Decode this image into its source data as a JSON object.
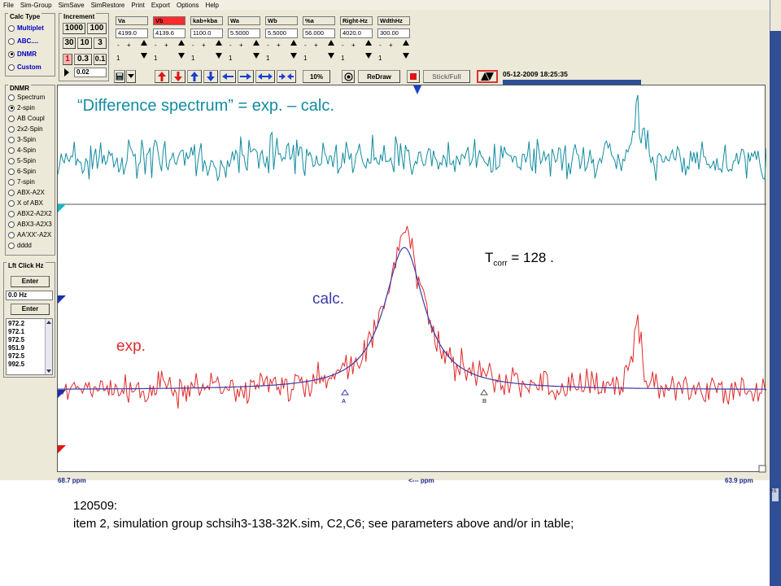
{
  "menu": [
    "File",
    "Sim-Group",
    "SimSave",
    "SimRestore",
    "Print",
    "Export",
    "Options",
    "Help"
  ],
  "calc_type": {
    "title": "Calc Type",
    "options": [
      {
        "label": "Multiplet",
        "checked": false
      },
      {
        "label": "ABC....",
        "checked": false
      },
      {
        "label": "DNMR",
        "checked": true
      },
      {
        "label": "Custom",
        "checked": false
      }
    ]
  },
  "increment": {
    "title": "Increment",
    "buttons": [
      "1000",
      "100",
      "30",
      "10",
      "3",
      "1",
      "0.3",
      "0.1"
    ],
    "value": "0.02"
  },
  "params": [
    {
      "label": "Va",
      "value": "4199.0",
      "highlight": false
    },
    {
      "label": "Vb",
      "value": "4139.6",
      "highlight": true
    },
    {
      "label": "kab+kba",
      "value": "1100.0",
      "highlight": false
    },
    {
      "label": "Wa",
      "value": "5.5000",
      "highlight": false
    },
    {
      "label": "Wb",
      "value": "5.5000",
      "highlight": false
    },
    {
      "label": "%a",
      "value": "56.000",
      "highlight": false
    },
    {
      "label": "Right-Hz",
      "value": "4020.0",
      "highlight": false
    },
    {
      "label": "WdthHz",
      "value": "300.00",
      "highlight": false
    }
  ],
  "param_step_symbol_minus": "-",
  "param_step_symbol_plus": "+",
  "param_step_one": "1",
  "dnmr": {
    "title": "DNMR",
    "options": [
      {
        "label": "Spectrum",
        "checked": false
      },
      {
        "label": "2-spin",
        "checked": true
      },
      {
        "label": "AB Coupl",
        "checked": false
      },
      {
        "label": "2x2-Spin",
        "checked": false
      },
      {
        "label": "3-Spin",
        "checked": false
      },
      {
        "label": "4-Spin",
        "checked": false
      },
      {
        "label": "5-Spin",
        "checked": false
      },
      {
        "label": "6-Spin",
        "checked": false
      },
      {
        "label": "7-spin",
        "checked": false
      },
      {
        "label": "ABX-A2X",
        "checked": false
      },
      {
        "label": "X of ABX",
        "checked": false
      },
      {
        "label": "ABX2-A2X2",
        "checked": false
      },
      {
        "label": "ABX3-A2X3",
        "checked": false
      },
      {
        "label": "AA'XX'-A2X",
        "checked": false
      },
      {
        "label": "dddd",
        "checked": false
      }
    ]
  },
  "left_click": {
    "title": "Lft Click Hz",
    "enter_label": "Enter",
    "value": "0.0 Hz",
    "list": [
      "972.2",
      "972.1",
      "972.5",
      "951.9",
      "972.5",
      "992.5"
    ]
  },
  "toolbar": {
    "zoom": "10%",
    "redraw": "ReDraw",
    "stick_full": "Stick/Full"
  },
  "datetime": "05-12-2009  18:25:35",
  "colors": {
    "difference": "#138ca0",
    "experimental": "#e02a2a",
    "calculated": "#3b3ba8"
  },
  "plot": {
    "annotation_difference": "“Difference spectrum” = exp. – calc.",
    "tcorr_main": "T",
    "tcorr_sub": "corr",
    "tcorr_value": " = 128  .",
    "label_calc": "calc.",
    "label_exp": "exp.",
    "marker_a": "A",
    "marker_b": "B"
  },
  "axis": {
    "left": "68.7 ppm",
    "middle": "<--- ppm",
    "right": "63.9 ppm"
  },
  "caption": {
    "line1": "120509:",
    "line2": "item 2, simulation group schsih3-138-32K.sim,  C2,C6; see parameters above and/or in table;"
  },
  "edge_text": "es"
}
